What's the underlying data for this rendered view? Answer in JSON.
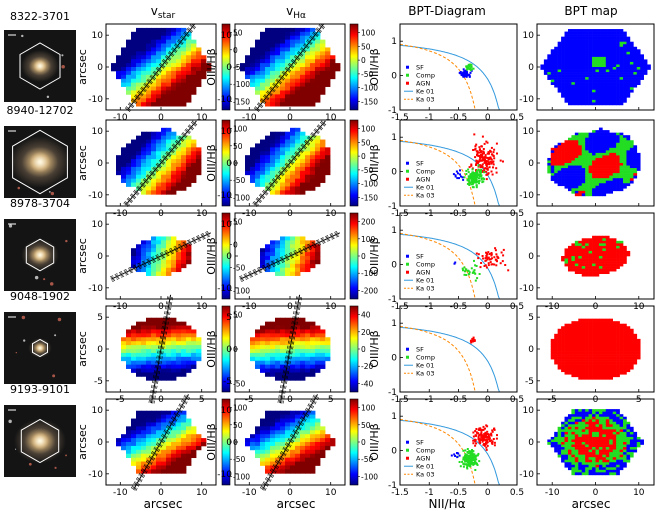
{
  "figure": {
    "column_titles": {
      "vstar": "v",
      "vstar_sub": "star",
      "vha": "v",
      "vha_sub": "Hα",
      "bpt": "BPT-Diagram",
      "map": "BPT map"
    },
    "axis_labels": {
      "arcsec": "arcsec",
      "oiii": "OIII/Hβ",
      "nii": "NII/Hα"
    },
    "legend": {
      "sf": "SF",
      "comp": "Comp",
      "agn": "AGN",
      "ke": "Ke 01",
      "ka": "Ka 03"
    },
    "colors": {
      "sf": "#0000ff",
      "comp": "#22dd22",
      "agn": "#ff0000",
      "ke": "#3399dd",
      "ka": "#ff8800"
    }
  },
  "rows": [
    {
      "galaxy": "8322-3701",
      "vstar": {
        "x_ticks": [
          "-10",
          "0",
          "10"
        ],
        "y_ticks": [
          "10",
          "0",
          "-10"
        ],
        "cb_ticks": [
          "50",
          "0",
          "-50",
          "-100",
          "-150"
        ]
      },
      "vha": {
        "x_ticks": [
          "-10",
          "0",
          "10"
        ],
        "y_ticks": [
          "10",
          "0",
          "-10"
        ],
        "cb_ticks": [
          "100",
          "50",
          "0",
          "-50",
          "-100",
          "-150"
        ]
      },
      "bpt": {
        "y_ticks": [
          "1",
          "0",
          "-1"
        ],
        "x_ticks": [
          "-1.5",
          "-1",
          "-0.5",
          "0",
          "0.5"
        ]
      },
      "map": {
        "x_ticks": [
          "-10",
          "0",
          "10"
        ],
        "y_ticks": [
          "10",
          "0",
          "-10"
        ]
      }
    },
    {
      "galaxy": "8940-12702",
      "vstar": {
        "x_ticks": [
          "-10",
          "0",
          "10"
        ],
        "y_ticks": [
          "10",
          "0",
          "-10"
        ],
        "cb_ticks": [
          "100",
          "50",
          "0",
          "-50",
          "-100"
        ]
      },
      "vha": {
        "x_ticks": [
          "-10",
          "0",
          "10"
        ],
        "y_ticks": [
          "10",
          "0",
          "-10"
        ],
        "cb_ticks": [
          "100",
          "50",
          "0",
          "-50",
          "-100",
          "-150"
        ]
      },
      "bpt": {
        "y_ticks": [
          "1",
          "0",
          "-1"
        ],
        "x_ticks": [
          "-1.5",
          "-1",
          "-0.5",
          "0",
          "0.5"
        ]
      },
      "map": {
        "x_ticks": [
          "-10",
          "0",
          "10"
        ],
        "y_ticks": [
          "10",
          "0",
          "-10"
        ]
      }
    },
    {
      "galaxy": "8978-3704",
      "vstar": {
        "x_ticks": [
          "-10",
          "0",
          "10"
        ],
        "y_ticks": [
          "10",
          "0",
          "-10"
        ],
        "cb_ticks": [
          "50",
          "0",
          "-50",
          "-100"
        ]
      },
      "vha": {
        "x_ticks": [
          "-10",
          "0",
          "10"
        ],
        "y_ticks": [
          "10",
          "0",
          "-10"
        ],
        "cb_ticks": [
          "200",
          "100",
          "0",
          "-100",
          "-200"
        ]
      },
      "bpt": {
        "y_ticks": [
          "1",
          "0",
          "-1"
        ],
        "x_ticks": [
          "-1.5",
          "-1",
          "-0.5",
          "0",
          "0.5"
        ]
      },
      "map": {
        "x_ticks": [
          "-10",
          "0",
          "10"
        ],
        "y_ticks": [
          "10",
          "0",
          "-10"
        ]
      }
    },
    {
      "galaxy": "9048-1902",
      "vstar": {
        "x_ticks": [
          "-5",
          "0",
          "5"
        ],
        "y_ticks": [
          "5",
          "0",
          "-5"
        ],
        "cb_ticks": [
          "50",
          "0",
          "-50"
        ]
      },
      "vha": {
        "x_ticks": [
          "-5",
          "0",
          "5"
        ],
        "y_ticks": [
          "5",
          "0",
          "-5"
        ],
        "cb_ticks": [
          "40",
          "20",
          "0",
          "-20",
          "-40"
        ]
      },
      "bpt": {
        "y_ticks": [
          "1",
          "0",
          "-1"
        ],
        "x_ticks": [
          "-1.5",
          "-1",
          "-0.5",
          "0",
          "0.5"
        ]
      },
      "map": {
        "x_ticks": [
          "-5",
          "0",
          "5"
        ],
        "y_ticks": [
          "5",
          "0",
          "-5"
        ]
      }
    },
    {
      "galaxy": "9193-9101",
      "vstar": {
        "x_ticks": [
          "-10",
          "0",
          "10"
        ],
        "y_ticks": [
          "10",
          "0",
          "-10"
        ],
        "cb_ticks": [
          "100",
          "50",
          "0",
          "-50",
          "-100"
        ]
      },
      "vha": {
        "x_ticks": [
          "-10",
          "0",
          "10"
        ],
        "y_ticks": [
          "10",
          "0",
          "-10"
        ],
        "cb_ticks": [
          "100",
          "50",
          "0",
          "-50",
          "-100"
        ]
      },
      "bpt": {
        "y_ticks": [
          "1",
          "0",
          "-1"
        ],
        "x_ticks": [
          "-1.5",
          "-1",
          "-0.5",
          "0",
          "0.5"
        ]
      },
      "map": {
        "x_ticks": [
          "-10",
          "0",
          "10"
        ],
        "y_ticks": [
          "10",
          "0",
          "-10"
        ]
      }
    }
  ],
  "chart_data": {
    "type": "scatter",
    "title": "BPT-Diagram",
    "xlabel": "NII/Hα",
    "ylabel": "OIII/Hβ",
    "xlim": [
      -1.5,
      0.5
    ],
    "ylim": [
      -1,
      1.5
    ],
    "series": [
      {
        "name": "Ke 01",
        "kind": "line",
        "formula": "0.61/(x-0.47)+1.19"
      },
      {
        "name": "Ka 03",
        "kind": "line",
        "formula": "0.61/(x-0.05)+1.3"
      },
      {
        "name": "SF",
        "kind": "points"
      },
      {
        "name": "Comp",
        "kind": "points"
      },
      {
        "name": "AGN",
        "kind": "points"
      }
    ],
    "panels": [
      {
        "galaxy": "8322-3701",
        "clusters": [
          {
            "cls": "sf",
            "center": [
              -0.38,
              0.05
            ],
            "spread": [
              0.07,
              0.08
            ],
            "count": 45,
            "show_legend": true
          },
          {
            "cls": "comp",
            "center": [
              -0.32,
              0.22
            ],
            "spread": [
              0.05,
              0.08
            ],
            "count": 18
          }
        ]
      },
      {
        "galaxy": "8940-12702",
        "clusters": [
          {
            "cls": "agn",
            "center": [
              -0.05,
              0.35
            ],
            "spread": [
              0.16,
              0.35
            ],
            "count": 160
          },
          {
            "cls": "comp",
            "center": [
              -0.22,
              -0.15
            ],
            "spread": [
              0.1,
              0.18
            ],
            "count": 140
          },
          {
            "cls": "sf",
            "center": [
              -0.48,
              -0.1
            ],
            "spread": [
              0.05,
              0.1
            ],
            "count": 12
          }
        ]
      },
      {
        "galaxy": "8978-3704",
        "clusters": [
          {
            "cls": "agn",
            "center": [
              0.05,
              0.2
            ],
            "spread": [
              0.16,
              0.25
            ],
            "count": 55
          },
          {
            "cls": "comp",
            "center": [
              -0.3,
              -0.2
            ],
            "spread": [
              0.12,
              0.18
            ],
            "count": 25
          },
          {
            "cls": "sf",
            "center": [
              -0.55,
              0.05
            ],
            "spread": [
              0.04,
              0.04
            ],
            "count": 2
          }
        ]
      },
      {
        "galaxy": "9048-1902",
        "clusters": [
          {
            "cls": "agn",
            "center": [
              -0.25,
              0.48
            ],
            "spread": [
              0.03,
              0.06
            ],
            "count": 22
          }
        ]
      },
      {
        "galaxy": "9193-9101",
        "clusters": [
          {
            "cls": "agn",
            "center": [
              -0.05,
              0.4
            ],
            "spread": [
              0.14,
              0.2
            ],
            "count": 130
          },
          {
            "cls": "comp",
            "center": [
              -0.3,
              -0.25
            ],
            "spread": [
              0.1,
              0.18
            ],
            "count": 140
          },
          {
            "cls": "sf",
            "center": [
              -0.55,
              -0.15
            ],
            "spread": [
              0.05,
              0.08
            ],
            "count": 8
          }
        ]
      }
    ]
  }
}
